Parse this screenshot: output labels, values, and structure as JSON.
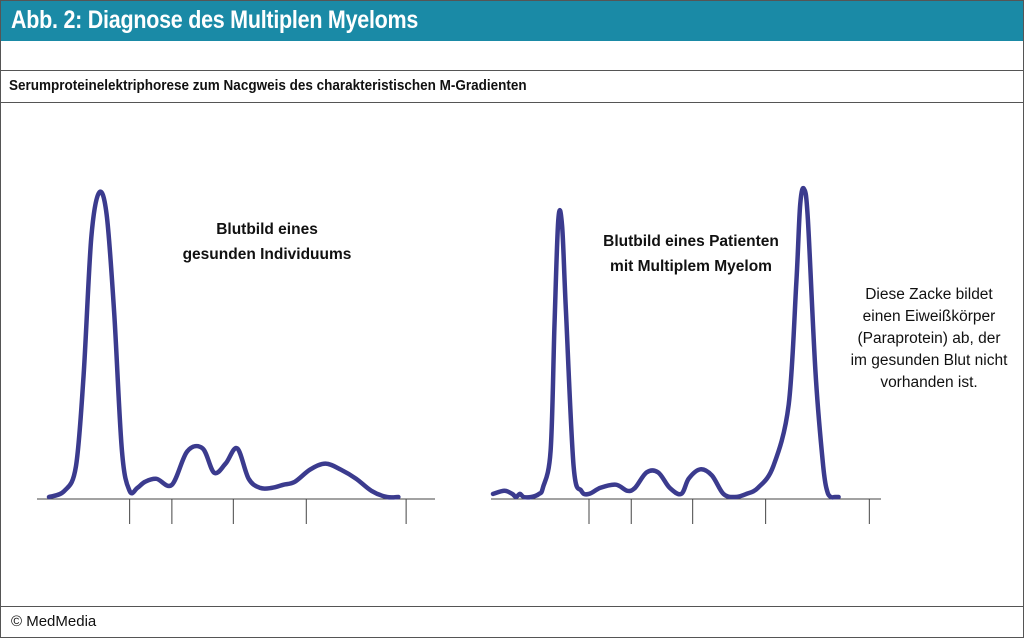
{
  "header": {
    "title": "Abb. 2: Diagnose des Multiplen Myeloms"
  },
  "subtitle": "Serumproteinelektriphorese zum Nacgweis des charakteristischen M-Gradienten",
  "footer": {
    "copyright": "© MedMedia"
  },
  "colors": {
    "header_bg": "#1a8aa6",
    "curve": "#3b3b8e"
  },
  "chart_data": [
    {
      "type": "line",
      "title": "Blutbild eines gesunden Individuums",
      "title_lines": [
        "Blutbild eines",
        "gesunden Individuums"
      ],
      "xlim": [
        0,
        100
      ],
      "ylim": [
        0,
        100
      ],
      "grid": false,
      "x": [
        0,
        4,
        7,
        9,
        11,
        13,
        15,
        17,
        19,
        21,
        23,
        25,
        28,
        32,
        36,
        40,
        43,
        46,
        49,
        52,
        55,
        58,
        61,
        64,
        68,
        72,
        76,
        80,
        84,
        88,
        91
      ],
      "y": [
        0,
        2,
        10,
        40,
        85,
        100,
        93,
        60,
        15,
        2,
        3,
        5,
        6,
        4,
        15,
        16,
        8,
        11,
        16,
        6,
        3,
        3,
        4,
        5,
        9,
        11,
        9,
        6,
        2,
        0,
        0
      ],
      "ticks": [
        21,
        32,
        48,
        67,
        93
      ]
    },
    {
      "type": "line",
      "title": "Blutbild eines  Patienten mit Multiplem Myelom",
      "title_lines": [
        "Blutbild eines  Patienten",
        "mit Multiplem Myelom"
      ],
      "xlim": [
        0,
        100
      ],
      "ylim": [
        0,
        100
      ],
      "grid": false,
      "x": [
        0,
        3,
        5,
        6,
        7,
        8,
        10,
        12,
        13,
        15,
        16,
        17,
        18,
        19,
        21,
        23,
        25,
        28,
        32,
        35,
        37,
        40,
        43,
        46,
        49,
        51,
        54,
        57,
        60,
        63,
        66,
        69,
        73,
        77,
        79,
        80,
        81,
        82,
        84,
        86,
        87,
        88,
        89,
        90
      ],
      "y": [
        1,
        2,
        1,
        0,
        1,
        0,
        0,
        1,
        3,
        15,
        55,
        90,
        88,
        60,
        10,
        2,
        1,
        3,
        4,
        2,
        3,
        8,
        8,
        3,
        1,
        6,
        9,
        7,
        1,
        0,
        1,
        3,
        10,
        30,
        70,
        95,
        100,
        90,
        40,
        10,
        2,
        0,
        0,
        0
      ],
      "ticks": [
        25,
        36,
        52,
        71,
        98
      ]
    }
  ],
  "annotation": {
    "lines": [
      "Diese Zacke bildet",
      "einen Eiweißkörper",
      "(Paraprotein) ab, der",
      "im gesunden Blut nicht",
      "vorhanden ist."
    ]
  }
}
